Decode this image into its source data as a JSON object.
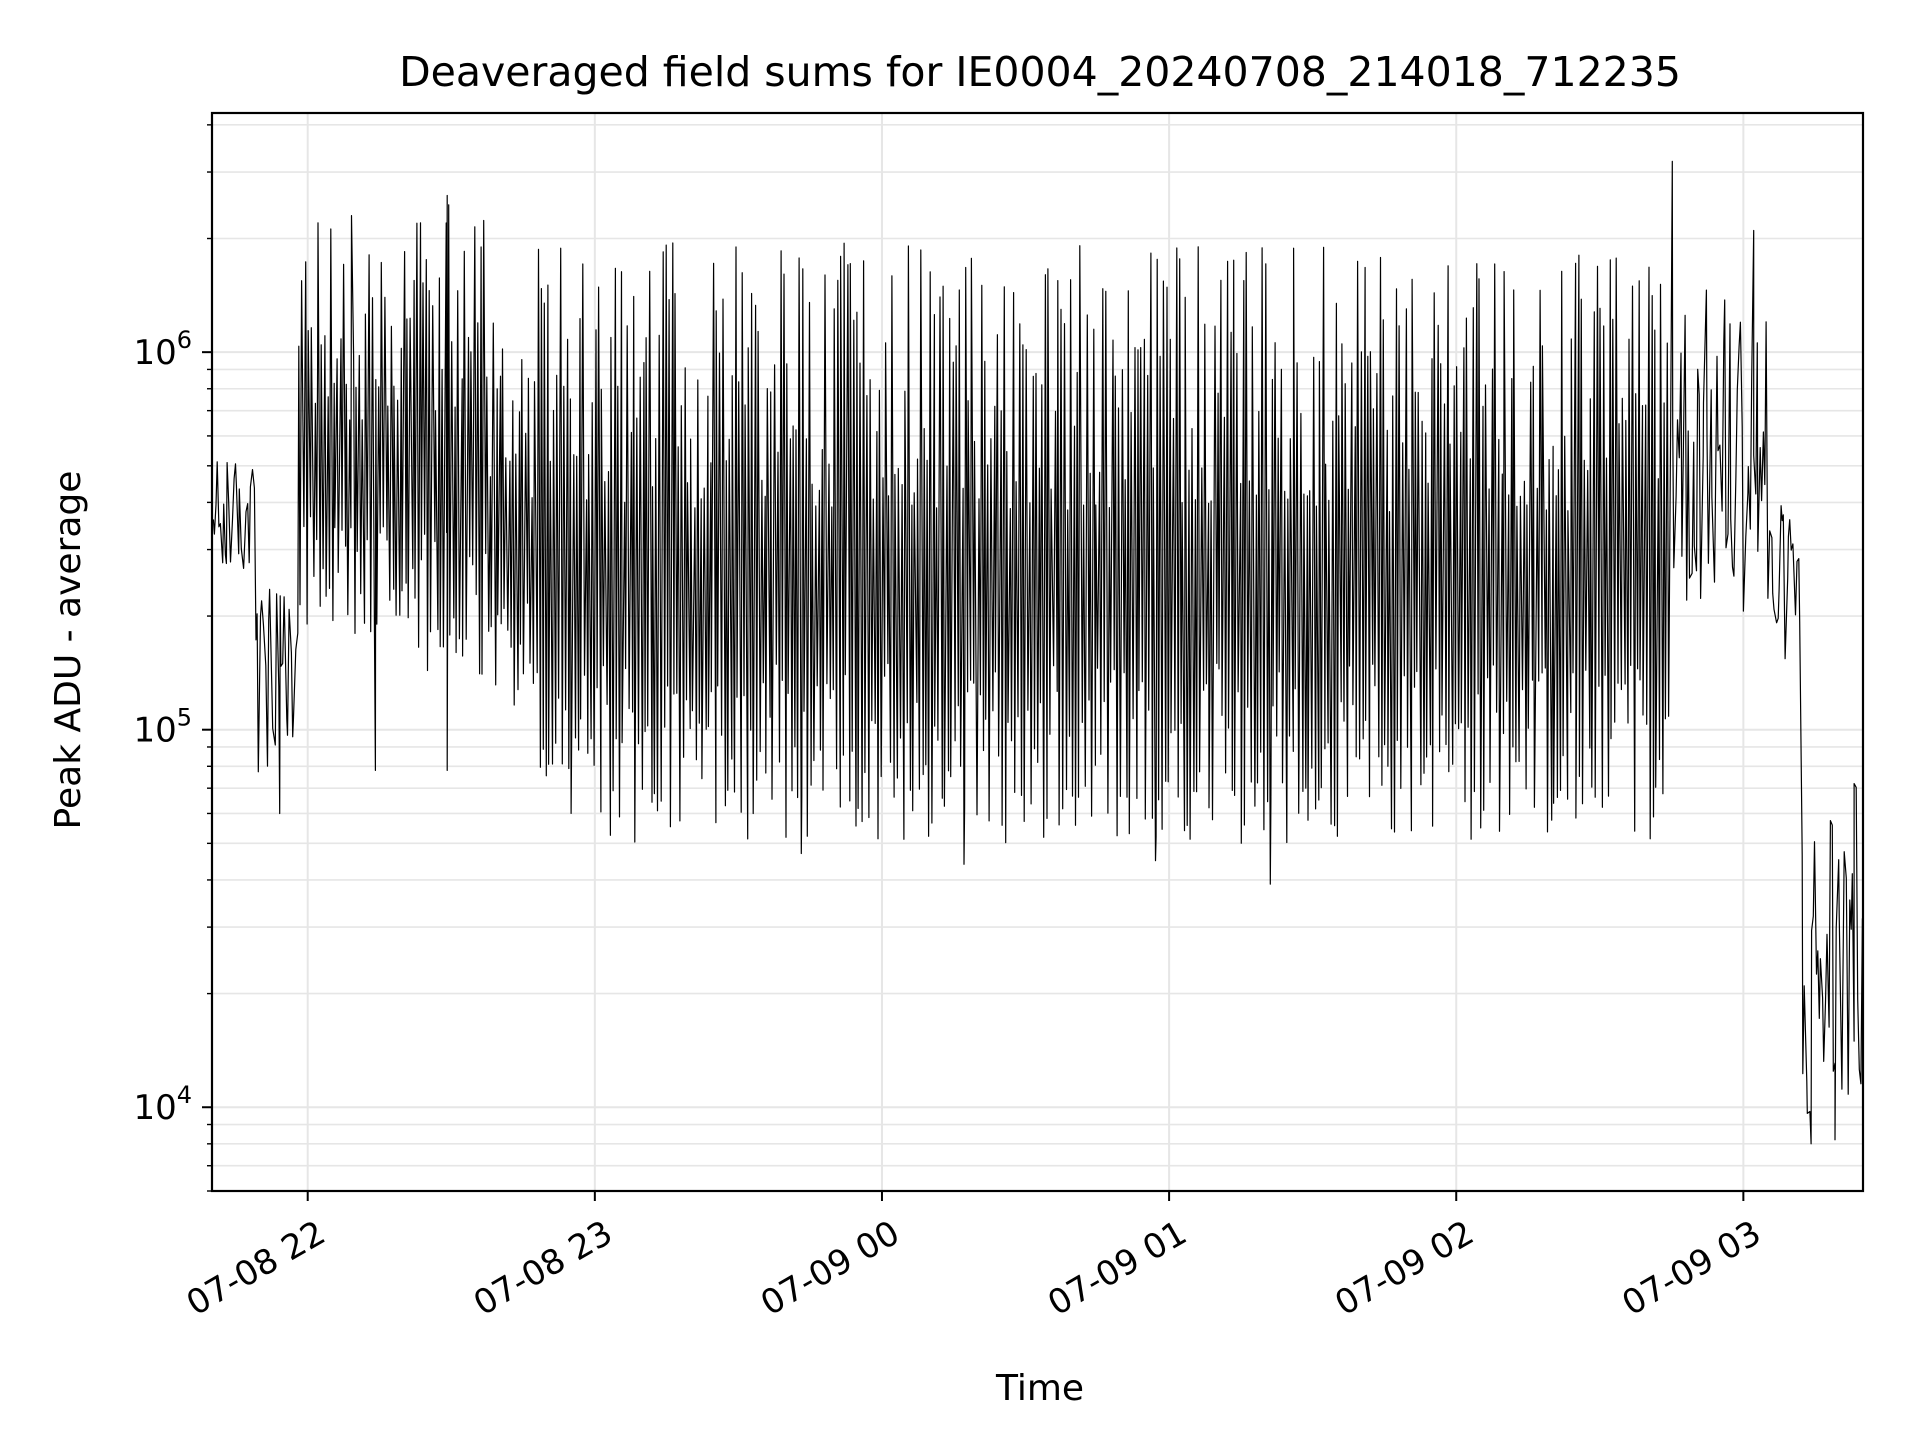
{
  "chart_data": {
    "type": "line",
    "title": "Deaveraged field sums for IE0004_20240708_214018_712235",
    "xlabel": "Time",
    "ylabel": "Peak ADU - average",
    "yscale": "log",
    "xlim": [
      "07-08 21:40",
      "07-09 03:25"
    ],
    "ylim": [
      6000,
      4300000
    ],
    "grid": true,
    "line_color": "#000000",
    "grid_color": "#e6e6e6",
    "x_ticks": [
      {
        "label": "07-08 22",
        "time": "07-08 22:00"
      },
      {
        "label": "07-08 23",
        "time": "07-08 23:00"
      },
      {
        "label": "07-09 00",
        "time": "07-09 00:00"
      },
      {
        "label": "07-09 01",
        "time": "07-09 01:00"
      },
      {
        "label": "07-09 02",
        "time": "07-09 02:00"
      },
      {
        "label": "07-09 03",
        "time": "07-09 03:00"
      }
    ],
    "y_ticks": [
      {
        "base": "10",
        "exp": "4",
        "value": 10000
      },
      {
        "base": "10",
        "exp": "5",
        "value": 100000
      },
      {
        "base": "10",
        "exp": "6",
        "value": 1000000
      }
    ],
    "series": [
      {
        "segments": [
          {
            "from": "07-08 21:40",
            "to": "07-08 21:49",
            "low": 250000,
            "high": 520000
          },
          {
            "from": "07-08 21:49",
            "to": "07-08 21:58",
            "low": 70000,
            "high": 240000
          },
          {
            "from": "07-08 21:58",
            "to": "07-08 22:08",
            "low": 170000,
            "high": 2300000
          },
          {
            "from": "07-08 22:08",
            "to": "07-08 22:20",
            "low": 170000,
            "high": 1900000
          },
          {
            "from": "07-08 22:20",
            "to": "07-08 22:38",
            "low": 140000,
            "high": 2600000
          },
          {
            "from": "07-08 22:38",
            "to": "07-08 22:48",
            "low": 110000,
            "high": 1200000
          },
          {
            "from": "07-08 22:48",
            "to": "07-09 02:45",
            "low": 50000,
            "high": 1950000
          },
          {
            "from": "07-09 02:45",
            "to": "07-09 03:05",
            "low": 200000,
            "high": 1500000
          },
          {
            "from": "07-09 03:05",
            "to": "07-09 03:12",
            "low": 150000,
            "high": 400000
          },
          {
            "from": "07-09 03:12",
            "to": "07-09 03:17",
            "low": 8000,
            "high": 60000
          },
          {
            "from": "07-09 03:17",
            "to": "07-09 03:25",
            "low": 9000,
            "high": 72000
          }
        ],
        "spikes": [
          {
            "time": "07-08 21:43",
            "value": 510000
          },
          {
            "time": "07-08 21:54",
            "value": 60000
          },
          {
            "time": "07-08 22:02",
            "value": 2200000
          },
          {
            "time": "07-08 22:09",
            "value": 2300000
          },
          {
            "time": "07-08 22:14",
            "value": 78000
          },
          {
            "time": "07-08 22:29",
            "value": 2600000
          },
          {
            "time": "07-08 22:29",
            "value": 78000
          },
          {
            "time": "07-08 23:43",
            "value": 47000
          },
          {
            "time": "07-09 00:17",
            "value": 44000
          },
          {
            "time": "07-09 00:57",
            "value": 45000
          },
          {
            "time": "07-09 01:21",
            "value": 39000
          },
          {
            "time": "07-09 02:45",
            "value": 3200000
          },
          {
            "time": "07-09 03:02",
            "value": 2100000
          },
          {
            "time": "07-09 03:14",
            "value": 8000
          },
          {
            "time": "07-09 03:19",
            "value": 8200
          },
          {
            "time": "07-09 03:23",
            "value": 72000
          }
        ]
      }
    ]
  }
}
